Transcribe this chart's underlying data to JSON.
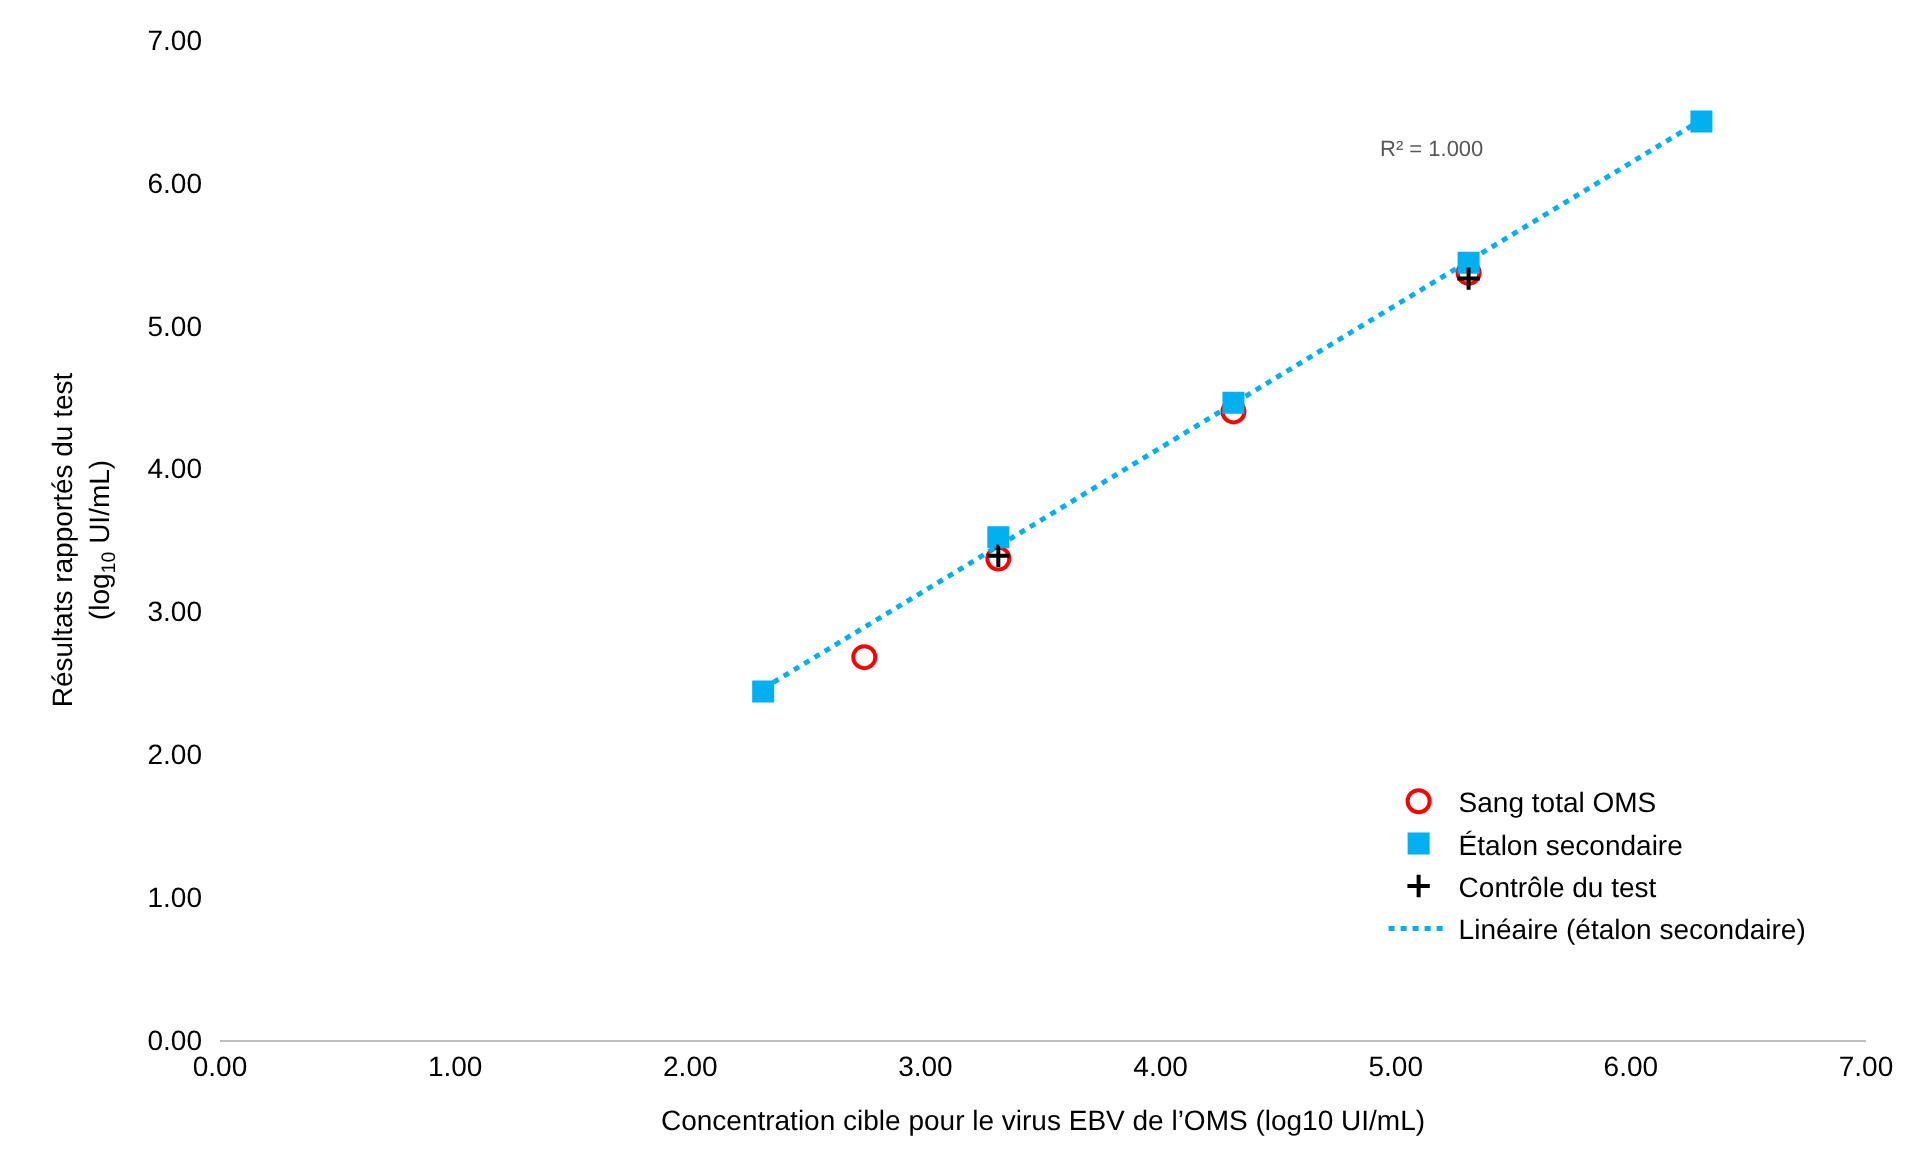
{
  "chart_data": {
    "type": "scatter",
    "xlabel": "Concentration cible pour le virus EBV de l’OMS (log10 UI/mL)",
    "ylabel": "Résultats rapportés du test\n(log$_{10}$ UI/mL)",
    "xlim": [
      0,
      7
    ],
    "xticks": [
      {
        "value": 0,
        "label": "0.00"
      },
      {
        "value": 1,
        "label": "1.00"
      },
      {
        "value": 2,
        "label": "2.00"
      },
      {
        "value": 3,
        "label": "3.00"
      },
      {
        "value": 4,
        "label": "4.00"
      },
      {
        "value": 5,
        "label": "5.00"
      },
      {
        "value": 6,
        "label": "6.00"
      },
      {
        "value": 7,
        "label": "7.00"
      }
    ],
    "ylim": [
      0,
      7
    ],
    "yticks": [
      {
        "value": 0,
        "label": "0.00"
      },
      {
        "value": 1,
        "label": "1.00"
      },
      {
        "value": 2,
        "label": "2.00"
      },
      {
        "value": 3,
        "label": "3.00"
      },
      {
        "value": 4,
        "label": "4.00"
      },
      {
        "value": 5,
        "label": "5.00"
      },
      {
        "value": 6,
        "label": "6.00"
      },
      {
        "value": 7,
        "label": "7.00"
      }
    ],
    "grid": false,
    "legend": "bottom right",
    "annotations": [
      "R² = 1.000"
    ],
    "series": [
      {
        "name": "Sang total OMS",
        "marker": "circle-open",
        "color": "#ff0000",
        "x": [
          2.74,
          3.31,
          4.31,
          5.31
        ],
        "values": [
          2.68,
          3.37,
          4.4,
          5.37
        ]
      },
      {
        "name": "Étalon secondaire",
        "marker": "square",
        "color": "#00b0f0",
        "x": [
          2.31,
          3.31,
          4.31,
          5.31,
          6.3
        ],
        "values": [
          2.44,
          3.52,
          4.46,
          5.44,
          6.43
        ]
      },
      {
        "name": "Contrôle du test",
        "marker": "cross",
        "color": "#000000",
        "x": [
          3.31,
          5.31
        ],
        "values": [
          3.39,
          5.33
        ]
      },
      {
        "name": "Linéaire (étalon secondaire)",
        "type": "line",
        "line_style": "dotted",
        "color": "#00b0f0",
        "x": [
          2.31,
          6.3
        ],
        "values": [
          2.46,
          6.44
        ]
      }
    ]
  }
}
